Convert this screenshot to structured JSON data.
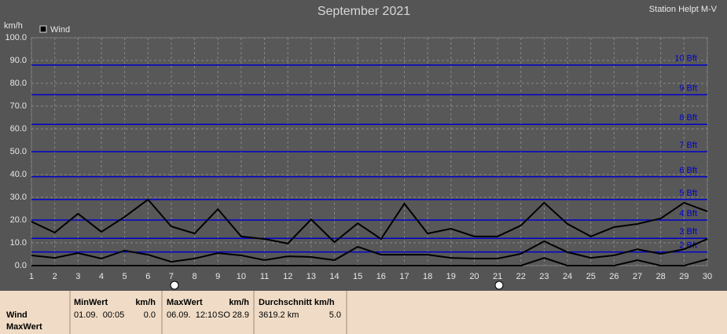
{
  "chart_data": {
    "type": "line",
    "title": "September 2021",
    "subtitle": "Station Helpt M-V",
    "y_label": "km/h",
    "legend_label": "Wind",
    "legend_color": "#000000",
    "x": [
      1,
      2,
      3,
      4,
      5,
      6,
      7,
      8,
      9,
      10,
      11,
      12,
      13,
      14,
      15,
      16,
      17,
      18,
      19,
      20,
      21,
      22,
      23,
      24,
      25,
      26,
      27,
      28,
      29,
      30
    ],
    "xlim": [
      1,
      30
    ],
    "xticks": [
      1,
      2,
      3,
      4,
      5,
      6,
      7,
      8,
      9,
      10,
      11,
      12,
      13,
      14,
      15,
      16,
      17,
      18,
      19,
      20,
      21,
      22,
      23,
      24,
      25,
      26,
      27,
      28,
      29,
      30
    ],
    "ylim": [
      0,
      100
    ],
    "yticks": [
      {
        "value": 0,
        "label": "0.0"
      },
      {
        "value": 10,
        "label": "10.0"
      },
      {
        "value": 20,
        "label": "20.0"
      },
      {
        "value": 30,
        "label": "30.0"
      },
      {
        "value": 40,
        "label": "40.0"
      },
      {
        "value": 50,
        "label": "50.0"
      },
      {
        "value": 60,
        "label": "60.0"
      },
      {
        "value": 70,
        "label": "70.0"
      },
      {
        "value": 80,
        "label": "80.0"
      },
      {
        "value": 90,
        "label": "90.0"
      },
      {
        "value": 100,
        "label": "100.0"
      }
    ],
    "grid": true,
    "reference_lines": [
      {
        "value": 6,
        "label": "2 Bft"
      },
      {
        "value": 12,
        "label": "3 Bft"
      },
      {
        "value": 20,
        "label": "4 Bft"
      },
      {
        "value": 29,
        "label": "5 Bft"
      },
      {
        "value": 39,
        "label": "6 Bft"
      },
      {
        "value": 50,
        "label": "7 Bft"
      },
      {
        "value": 62,
        "label": "8 Bft"
      },
      {
        "value": 75,
        "label": "9 Bft"
      },
      {
        "value": 88,
        "label": "10 Bft"
      }
    ],
    "reference_color": "#0000cc",
    "series": [
      {
        "color": "#000000",
        "values": [
          19.3,
          14.5,
          22.8,
          14.8,
          21.4,
          29.0,
          17.2,
          14.1,
          24.8,
          12.8,
          11.7,
          9.7,
          20.3,
          10.3,
          18.6,
          11.7,
          27.2,
          14.1,
          16.2,
          12.8,
          12.8,
          17.6,
          27.6,
          18.3,
          12.8,
          16.9,
          18.3,
          20.7,
          27.6,
          23.8
        ]
      },
      {
        "color": "#000000",
        "values": [
          4.5,
          3.4,
          5.5,
          3.1,
          6.6,
          4.8,
          1.7,
          3.1,
          5.5,
          4.5,
          2.4,
          4.1,
          3.8,
          2.4,
          8.3,
          4.8,
          4.8,
          4.8,
          3.4,
          3.1,
          3.1,
          5.2,
          10.7,
          5.9,
          3.4,
          4.5,
          7.2,
          5.2,
          7.2,
          11.7
        ]
      },
      {
        "color": "#000000",
        "values": [
          0,
          0,
          0,
          0,
          0,
          0,
          0,
          0,
          0,
          0,
          0,
          0,
          0,
          0,
          0,
          0,
          0,
          0,
          0,
          0,
          0,
          0,
          3.4,
          0,
          0,
          0,
          2.4,
          0,
          0,
          2.8
        ]
      }
    ]
  },
  "table": {
    "row_labels": [
      "Wind",
      "MaxWert"
    ],
    "min": {
      "header": "MinWert",
      "unit": "km/h",
      "time": "01.09.  00:05",
      "value": "0.0"
    },
    "max": {
      "header": "MaxWert",
      "unit": "km/h",
      "time": "06.09.  12:10",
      "direction": "SO",
      "value": "28.9"
    },
    "avg": {
      "header": "Durchschnitt km/h",
      "distance": "3619.2 km",
      "value": "5.0"
    }
  }
}
